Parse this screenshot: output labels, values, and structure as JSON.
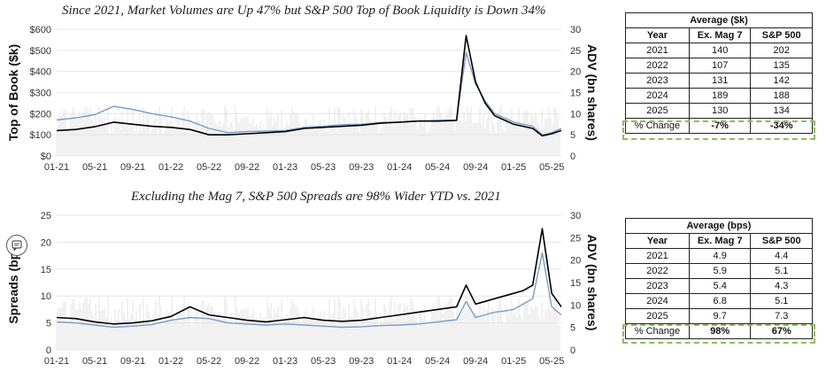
{
  "chart_data": [
    {
      "type": "line",
      "title": "Since 2021, Market Volumes are Up 47% but S&P 500 Top of Book Liquidity is Down 34%",
      "ylabel": "Top of Book ($k)",
      "y2label": "ADV (bn shares)",
      "ylim": [
        0,
        600
      ],
      "y2lim": [
        0,
        30
      ],
      "yticks": [
        "$0",
        "$100",
        "$200",
        "$300",
        "$400",
        "$500",
        "$600"
      ],
      "y2ticks": [
        "0",
        "5",
        "10",
        "15",
        "20",
        "25",
        "30"
      ],
      "xticks": [
        "01-21",
        "05-21",
        "09-21",
        "01-22",
        "05-22",
        "09-22",
        "01-23",
        "05-23",
        "09-23",
        "01-24",
        "05-24",
        "09-24",
        "01-25",
        "05-25"
      ],
      "x": [
        "01-21",
        "03-21",
        "05-21",
        "07-21",
        "09-21",
        "11-21",
        "01-22",
        "03-22",
        "05-22",
        "07-22",
        "09-22",
        "11-22",
        "01-23",
        "03-23",
        "05-23",
        "07-23",
        "09-23",
        "11-23",
        "01-24",
        "03-24",
        "05-24",
        "07-24",
        "08-24",
        "09-24",
        "10-24",
        "11-24",
        "12-24",
        "01-25",
        "02-25",
        "03-25",
        "04-25",
        "05-25",
        "06-25"
      ],
      "series": [
        {
          "color": "#7a9cc6",
          "values": [
            170,
            180,
            195,
            235,
            220,
            200,
            185,
            165,
            130,
            110,
            115,
            118,
            120,
            135,
            140,
            148,
            150,
            158,
            160,
            165,
            168,
            170,
            490,
            340,
            260,
            200,
            180,
            160,
            150,
            140,
            100,
            110,
            130
          ]
        },
        {
          "color": "#000000",
          "values": [
            120,
            125,
            138,
            160,
            150,
            140,
            135,
            125,
            100,
            100,
            105,
            110,
            115,
            130,
            135,
            140,
            145,
            155,
            160,
            165,
            165,
            168,
            570,
            350,
            250,
            190,
            170,
            150,
            140,
            130,
            95,
            105,
            120
          ]
        }
      ],
      "grid": true,
      "legend": "none",
      "background_series": "ADV (light grey bars)"
    },
    {
      "type": "line",
      "title": "Excluding the Mag 7, S&P 500 Spreads are 98% Wider YTD vs. 2021",
      "ylabel": "Spreads (bps)",
      "y2label": "ADV (bn shares)",
      "ylim": [
        0,
        25
      ],
      "y2lim": [
        0,
        30
      ],
      "yticks": [
        "0",
        "5",
        "10",
        "15",
        "20",
        "25"
      ],
      "y2ticks": [
        "0",
        "5",
        "10",
        "15",
        "20",
        "25",
        "30"
      ],
      "xticks": [
        "01-21",
        "05-21",
        "09-21",
        "01-22",
        "05-22",
        "09-22",
        "01-23",
        "05-23",
        "09-23",
        "01-24",
        "05-24",
        "09-24",
        "01-25",
        "05-25"
      ],
      "x": [
        "01-21",
        "03-21",
        "05-21",
        "07-21",
        "09-21",
        "11-21",
        "01-22",
        "03-22",
        "05-22",
        "07-22",
        "09-22",
        "11-22",
        "01-23",
        "03-23",
        "05-23",
        "07-23",
        "09-23",
        "11-23",
        "01-24",
        "03-24",
        "05-24",
        "07-24",
        "08-24",
        "09-24",
        "10-24",
        "11-24",
        "12-24",
        "01-25",
        "02-25",
        "03-25",
        "04-25",
        "05-25",
        "06-25"
      ],
      "series": [
        {
          "color": "#7a9cc6",
          "values": [
            5.2,
            5.0,
            4.6,
            4.2,
            4.4,
            4.7,
            5.5,
            6.0,
            5.8,
            5.0,
            4.8,
            4.6,
            4.8,
            4.6,
            4.4,
            4.2,
            4.3,
            4.5,
            4.6,
            4.8,
            5.2,
            5.6,
            9.0,
            6.0,
            6.5,
            7.0,
            7.2,
            7.5,
            8.5,
            9.5,
            18.0,
            8.0,
            6.5
          ]
        },
        {
          "color": "#000000",
          "values": [
            6.0,
            5.8,
            5.2,
            4.8,
            5.0,
            5.4,
            6.2,
            8.0,
            6.5,
            6.0,
            5.5,
            5.2,
            5.6,
            6.0,
            5.5,
            5.3,
            5.5,
            6.0,
            6.5,
            7.0,
            7.5,
            8.0,
            12.0,
            8.5,
            9.0,
            9.5,
            10.0,
            10.5,
            11.0,
            12.0,
            22.5,
            10.5,
            8.0
          ]
        }
      ],
      "grid": true,
      "legend": "none",
      "background_series": "ADV (light grey bars)"
    }
  ],
  "tables": {
    "top": {
      "caption": "Average ($k)",
      "headers": [
        "Year",
        "Ex. Mag 7",
        "S&P 500"
      ],
      "rows": [
        [
          "2021",
          "140",
          "202"
        ],
        [
          "2022",
          "107",
          "135"
        ],
        [
          "2023",
          "131",
          "142"
        ],
        [
          "2024",
          "189",
          "188"
        ],
        [
          "2025",
          "130",
          "134"
        ]
      ],
      "change": [
        "% Change",
        "-7%",
        "-34%"
      ]
    },
    "bottom": {
      "caption": "Average (bps)",
      "headers": [
        "Year",
        "Ex. Mag 7",
        "S&P 500"
      ],
      "rows": [
        [
          "2021",
          "4.9",
          "4.4"
        ],
        [
          "2022",
          "5.9",
          "5.1"
        ],
        [
          "2023",
          "5.4",
          "4.3"
        ],
        [
          "2024",
          "6.8",
          "5.1"
        ],
        [
          "2025",
          "9.7",
          "7.3"
        ]
      ],
      "change": [
        "% Change",
        "98%",
        "67%"
      ]
    }
  },
  "colors": {
    "highlight_dashed": "#8bbf5a",
    "adv_bars": "#e3e3e3"
  },
  "icons": {
    "feedback": "comment-icon"
  }
}
